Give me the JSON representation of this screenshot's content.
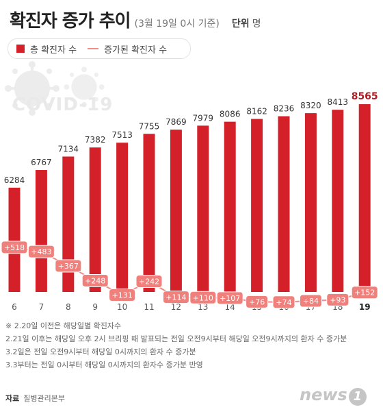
{
  "header": {
    "title": "확진자 증가 추이",
    "subtitle": "(3월 19일 0시 기준)",
    "unit_label": "단위",
    "unit_value": "명"
  },
  "legend": {
    "total_label": "총 확진자 수",
    "increase_label": "증가된 확진자 수"
  },
  "watermark": "COVID-19",
  "colors": {
    "bar": "#d42028",
    "increase_line": "#f28a85",
    "increase_badge": "#f0807c",
    "last_label": "#b01c22"
  },
  "chart_data": {
    "type": "bar",
    "title": "확진자 증가 추이",
    "categories": [
      "6",
      "7",
      "8",
      "9",
      "10",
      "11",
      "12",
      "13",
      "14",
      "15",
      "16",
      "17",
      "18",
      "19"
    ],
    "series": [
      {
        "name": "총 확진자 수",
        "type": "bar",
        "values": [
          6284,
          6767,
          7134,
          7382,
          7513,
          7755,
          7869,
          7979,
          8086,
          8162,
          8236,
          8320,
          8413,
          8565
        ],
        "labels": [
          "6284",
          "6767",
          "7134",
          "7382",
          "7513",
          "7755",
          "7869",
          "7979",
          "8086",
          "8162",
          "8236",
          "8320",
          "8413",
          "8565"
        ]
      },
      {
        "name": "증가된 확진자 수",
        "type": "line",
        "values": [
          518,
          483,
          367,
          248,
          131,
          242,
          114,
          110,
          107,
          76,
          74,
          84,
          93,
          152
        ],
        "labels": [
          "+518",
          "+483",
          "+367",
          "+248",
          "+131",
          "+242",
          "+114",
          "+110",
          "+107",
          "+76",
          "+74",
          "+84",
          "+93",
          "+152"
        ]
      }
    ]
  },
  "notes": [
    "※ 2.20일 이전은 해당일별 확진자수",
    "2.21일 이후는 해당일 오후 2시 브리핑 때 발표되는 전일 오전9시부터 해당일 오전9시까지의 환자 수 증가분",
    "3.2일은 전일 오전9시부터 해당일 0시까지의 환자 수 증가분",
    "3.3부터는 전일 0시부터 해당일 0시까지의 환자수 증가분 반영"
  ],
  "source": {
    "label": "자료",
    "value": "질병관리본부"
  },
  "logo": {
    "text": "news",
    "badge": "1"
  }
}
